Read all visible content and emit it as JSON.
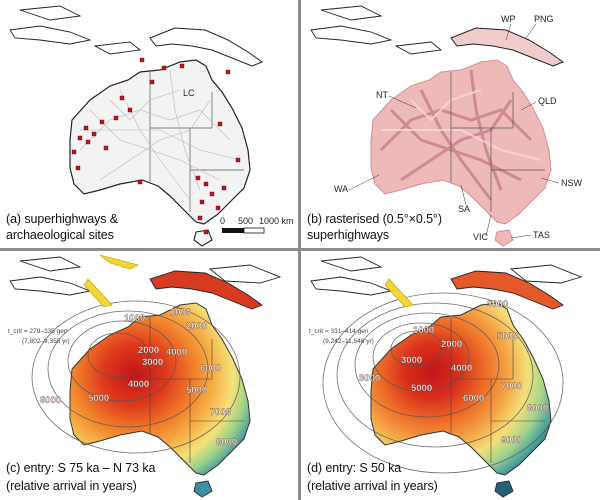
{
  "panels": {
    "a": {
      "caption_line1": "(a) superhighways &",
      "caption_line2": "archaeological sites",
      "label_lc": "LC",
      "scale_ticks": [
        "0",
        "500",
        "1000 km"
      ]
    },
    "b": {
      "caption_line1": "(b) rasterised (0.5°×0.5°)",
      "caption_line2": "superhighways",
      "regions": [
        "WP",
        "PNG",
        "NT",
        "QLD",
        "WA",
        "SA",
        "NSW",
        "VIC",
        "TAS"
      ]
    },
    "c": {
      "caption_line1": "(c) entry: S 75 ka – N 73 ka",
      "caption_line2": "(relative arrival in years)",
      "tcrit_line1": "t_crit = 279–335 gen",
      "tcrit_line2": "(7,802–9,355 yr)",
      "contours": [
        "1000",
        "1000",
        "2000",
        "2000",
        "3000",
        "4000",
        "4000",
        "5000",
        "5000",
        "6000",
        "7000",
        "8000",
        "8000"
      ]
    },
    "d": {
      "caption_line1": "(d) entry: S 50 ka",
      "caption_line2": "(relative arrival in years)",
      "tcrit_line1": "t_crit = 331–414 gen",
      "tcrit_line2": "(9,242–11,546 yr)",
      "contours": [
        "1000",
        "2000",
        "3000",
        "3000",
        "4000",
        "5000",
        "5000",
        "6000",
        "7000",
        "8000",
        "9000",
        "3000"
      ]
    }
  },
  "colors": {
    "site_marker": "#c0141c",
    "raster": "#e8a9a9",
    "arrow": "#f5d632",
    "early": "#c8201a",
    "late": "#2f7a92"
  }
}
